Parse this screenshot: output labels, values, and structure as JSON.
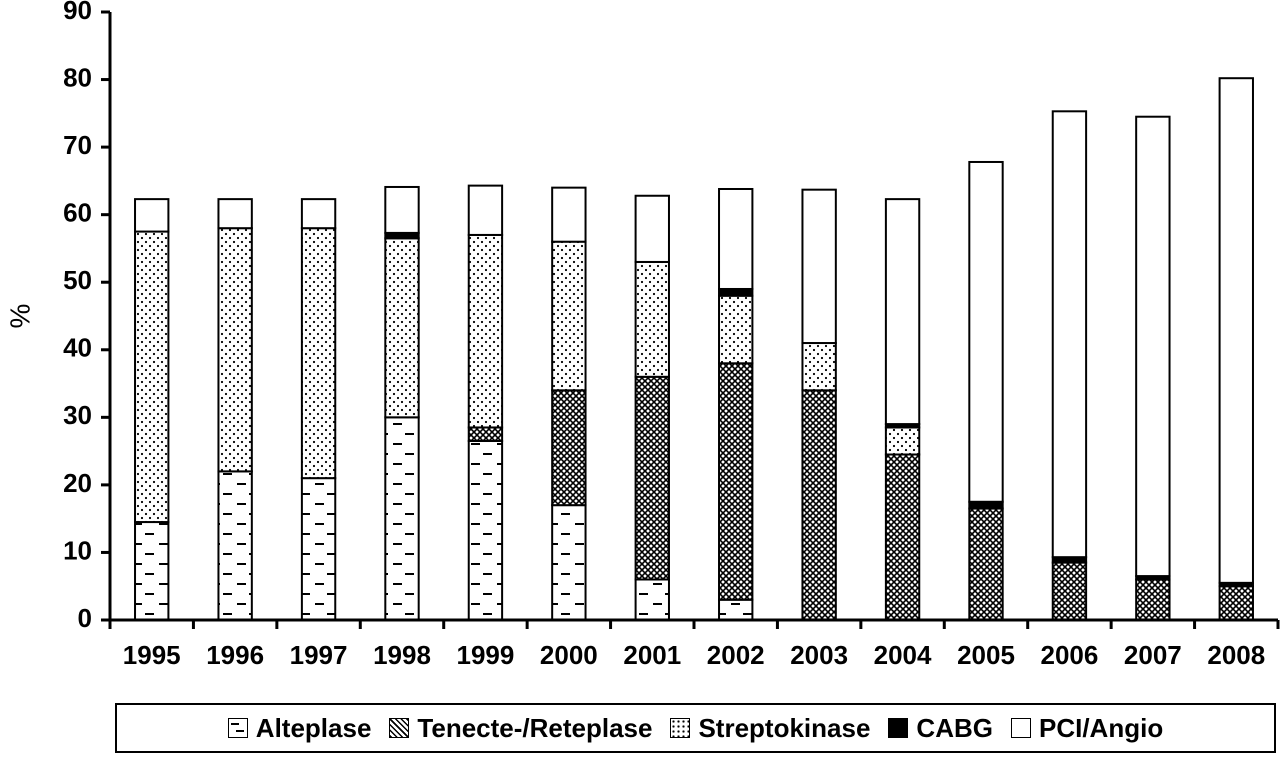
{
  "chart_data": {
    "type": "bar",
    "stacked": true,
    "title": "",
    "xlabel": "",
    "ylabel": "%",
    "ylim": [
      0,
      90
    ],
    "yticks": [
      0,
      10,
      20,
      30,
      40,
      50,
      60,
      70,
      80,
      90
    ],
    "categories": [
      "1995",
      "1996",
      "1997",
      "1998",
      "1999",
      "2000",
      "2001",
      "2002",
      "2003",
      "2004",
      "2005",
      "2006",
      "2007",
      "2008"
    ],
    "series": [
      {
        "name": "Alteplase",
        "pattern": "dash",
        "values": [
          14.5,
          22,
          21,
          30,
          26.5,
          17,
          6,
          3,
          0,
          0,
          0,
          0,
          0,
          0
        ]
      },
      {
        "name": "Tenecte-/Reteplase",
        "pattern": "crosshatch",
        "values": [
          0,
          0,
          0,
          0,
          2,
          17,
          30,
          35,
          34,
          24.5,
          16.5,
          8.5,
          6,
          5
        ]
      },
      {
        "name": "Streptokinase",
        "pattern": "dots",
        "values": [
          43,
          36,
          37,
          26.5,
          28.5,
          22,
          17,
          10,
          7,
          4,
          0,
          0,
          0,
          0
        ]
      },
      {
        "name": "CABG",
        "pattern": "solid",
        "values": [
          0,
          0,
          0,
          0.8,
          0,
          0,
          0,
          1,
          0,
          0.5,
          1,
          0.8,
          0.5,
          0.5
        ]
      },
      {
        "name": "PCI/Angio",
        "pattern": "white",
        "values": [
          4.8,
          4.3,
          4.3,
          6.8,
          7.3,
          8,
          9.8,
          14.8,
          22.7,
          33.3,
          50.3,
          66,
          68,
          74.7
        ]
      }
    ],
    "legend_position": "bottom",
    "grid": false
  }
}
